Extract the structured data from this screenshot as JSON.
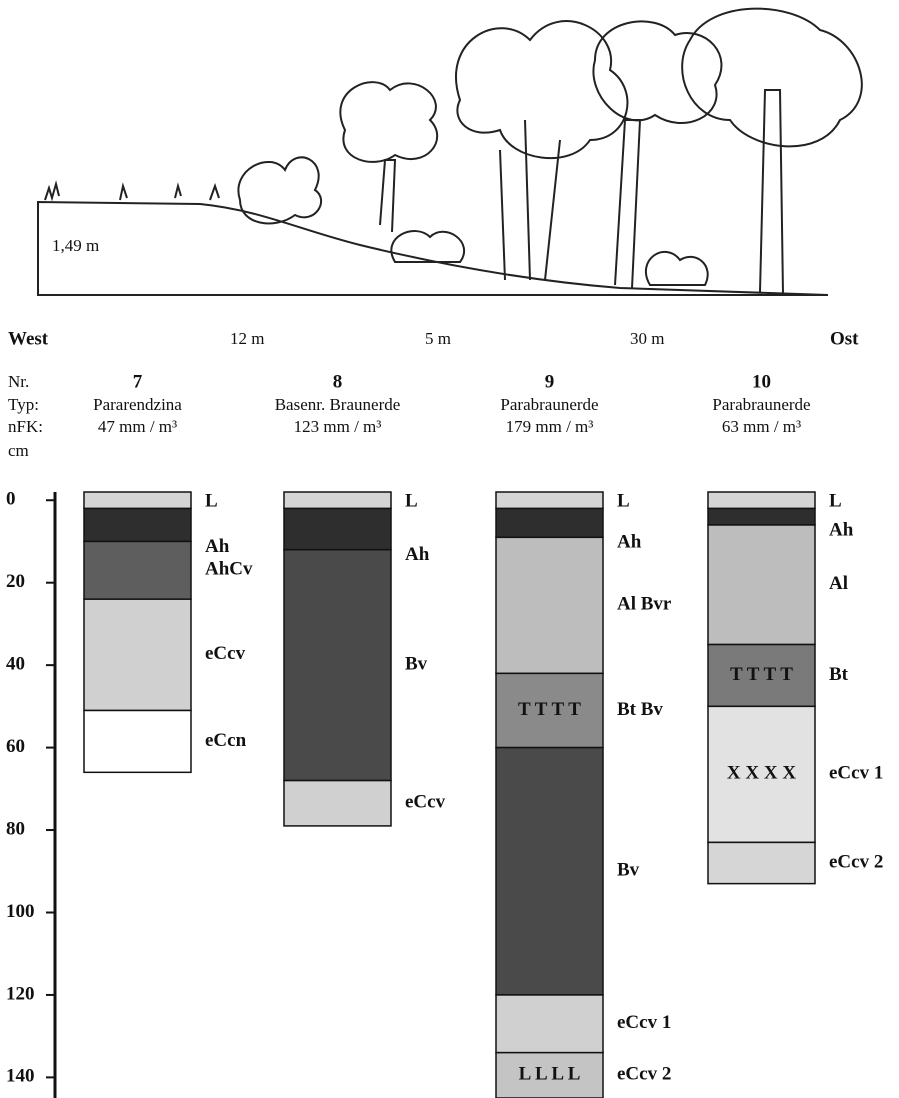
{
  "landscape": {
    "height_label": "1,49 m",
    "west": "West",
    "east": "Ost",
    "distances": [
      "12 m",
      "5 m",
      "30 m"
    ]
  },
  "row_labels": {
    "nr": "Nr.",
    "type": "Typ:",
    "nfk": "nFK:",
    "unit": "cm"
  },
  "depth_axis": {
    "lim": [
      -2,
      145
    ],
    "ticks": [
      0,
      20,
      40,
      60,
      80,
      100,
      120,
      140
    ]
  },
  "profiles": [
    {
      "nr": 7,
      "type": "Pararendzina",
      "nfk": "47 mm / m³",
      "horizons": [
        {
          "name": "L",
          "top": -2,
          "bottom": 2,
          "color": "#d4d4d4"
        },
        {
          "name": "Ah",
          "top": 2,
          "bottom": 10,
          "color": "#2e2e2e"
        },
        {
          "name": "AhCv",
          "top": 10,
          "bottom": 24,
          "color": "#5e5e5e"
        },
        {
          "name": "eCcv",
          "top": 24,
          "bottom": 51,
          "color": "#d0d0d0"
        },
        {
          "name": "eCcn",
          "top": 51,
          "bottom": 66,
          "color": "#ffffff"
        }
      ]
    },
    {
      "nr": 8,
      "type": "Basenr. Braunerde",
      "nfk": "123 mm / m³",
      "horizons": [
        {
          "name": "L",
          "top": -2,
          "bottom": 2,
          "color": "#d4d4d4"
        },
        {
          "name": "Ah",
          "top": 2,
          "bottom": 12,
          "color": "#2e2e2e"
        },
        {
          "name": "Bv",
          "top": 12,
          "bottom": 68,
          "color": "#4a4a4a"
        },
        {
          "name": "eCcv",
          "top": 68,
          "bottom": 79,
          "color": "#d0d0d0"
        }
      ]
    },
    {
      "nr": 9,
      "type": "Parabraunerde",
      "nfk": "179 mm / m³",
      "horizons": [
        {
          "name": "L",
          "top": -2,
          "bottom": 2,
          "color": "#d4d4d4"
        },
        {
          "name": "Ah",
          "top": 2,
          "bottom": 9,
          "color": "#2e2e2e"
        },
        {
          "name": "Al Bvr",
          "top": 9,
          "bottom": 42,
          "color": "#bdbdbd"
        },
        {
          "name": "Bt Bv",
          "top": 42,
          "bottom": 60,
          "color": "#8a8a8a",
          "symbol": "T T T T"
        },
        {
          "name": "Bv",
          "top": 60,
          "bottom": 120,
          "color": "#4a4a4a"
        },
        {
          "name": "eCcv 1",
          "top": 120,
          "bottom": 134,
          "color": "#d0d0d0"
        },
        {
          "name": "eCcv 2",
          "top": 134,
          "bottom": 145,
          "color": "#c4c4c4",
          "symbol": "L L L L"
        }
      ]
    },
    {
      "nr": 10,
      "type": "Parabraunerde",
      "nfk": "63 mm / m³",
      "horizons": [
        {
          "name": "L",
          "top": -2,
          "bottom": 2,
          "color": "#d4d4d4"
        },
        {
          "name": "Ah",
          "top": 2,
          "bottom": 6,
          "color": "#2e2e2e"
        },
        {
          "name": "Al",
          "top": 6,
          "bottom": 35,
          "color": "#bdbdbd"
        },
        {
          "name": "Bt",
          "top": 35,
          "bottom": 50,
          "color": "#7a7a7a",
          "symbol": "T T T T"
        },
        {
          "name": "eCcv 1",
          "top": 50,
          "bottom": 83,
          "color": "#e2e2e2",
          "symbol": "X X X X"
        },
        {
          "name": "eCcv 2",
          "top": 83,
          "bottom": 93,
          "color": "#d6d6d6"
        }
      ]
    }
  ]
}
